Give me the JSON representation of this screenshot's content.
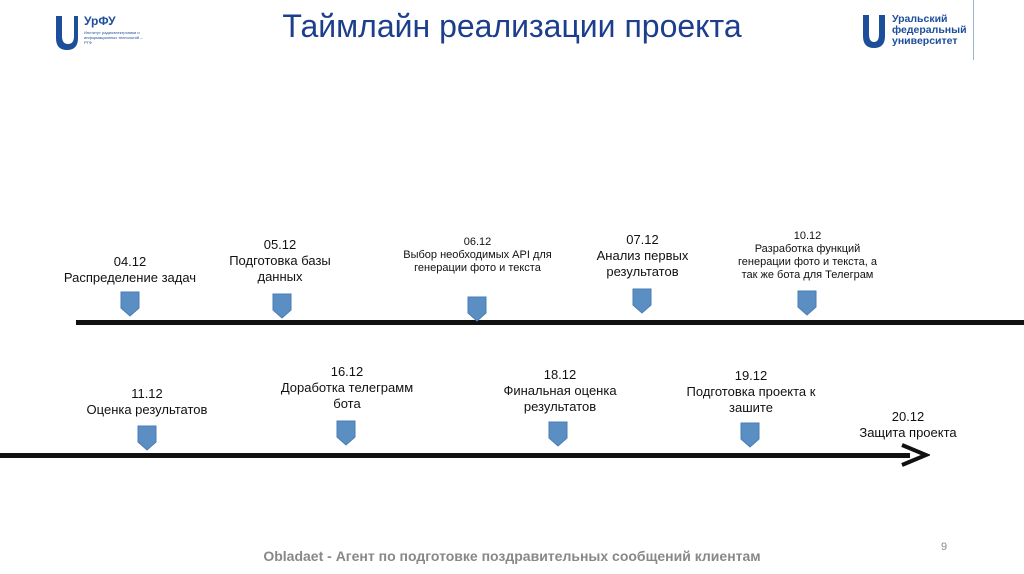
{
  "header": {
    "title": "Таймлайн реализации проекта",
    "left_logo_brand": "УрФУ",
    "left_logo_subtitle": "Институт радиоэлектроники и информационных технологий – РТФ",
    "right_logo_text": "Уральский федеральный университет"
  },
  "timeline_top": [
    {
      "date": "04.12",
      "text": "Распределение задач"
    },
    {
      "date": "05.12",
      "text": "Подготовка базы данных"
    },
    {
      "date": "06.12",
      "text": "Выбор необходимых API для генерации фото и текста"
    },
    {
      "date": "07.12",
      "text": "Анализ первых результатов"
    },
    {
      "date": "10.12",
      "text": "Разработка функций генерации фото и текста, а так же бота для Телеграм"
    }
  ],
  "timeline_bottom": [
    {
      "date": "11.12",
      "text": "Оценка результатов"
    },
    {
      "date": "16.12",
      "text": "Доработка телеграмм бота"
    },
    {
      "date": "18.12",
      "text": "Финальная оценка результатов"
    },
    {
      "date": "19.12",
      "text": "Подготовка проекта к зашите"
    },
    {
      "date": "20.12",
      "text": "Защита проекта"
    }
  ],
  "footer": {
    "text": "Obladaet - Агент по подготовке поздравительных сообщений клиентам",
    "page_number": "9"
  },
  "colors": {
    "accent": "#1c3e8c",
    "marker": "#5b8fc4",
    "logo": "#1c4e9a"
  }
}
